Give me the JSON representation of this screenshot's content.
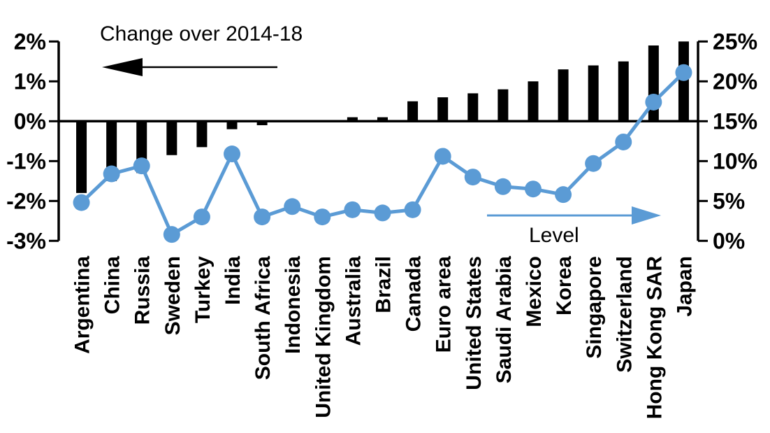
{
  "chart_data": {
    "type": "bar",
    "subtype": "combo-bar-line-dual-axis",
    "title": "",
    "grid": false,
    "background": "#FFFFFF",
    "categories": [
      "Argentina",
      "China",
      "Russia",
      "Sweden",
      "Turkey",
      "India",
      "South Africa",
      "Indonesia",
      "United Kingdom",
      "Australia",
      "Brazil",
      "Canada",
      "Euro area",
      "United States",
      "Saudi Arabia",
      "Mexico",
      "Korea",
      "Singapore",
      "Switzerland",
      "Hong Kong SAR",
      "Japan"
    ],
    "series": [
      {
        "name": "Change over 2014-18",
        "type": "bar",
        "axis": "left",
        "color": "#000000",
        "values": [
          -1.8,
          -1.5,
          -1.3,
          -0.85,
          -0.65,
          -0.2,
          -0.1,
          0,
          0,
          0.1,
          0.1,
          0.5,
          0.6,
          0.7,
          0.8,
          1.0,
          1.3,
          1.4,
          1.5,
          1.9,
          2.0
        ]
      },
      {
        "name": "Level",
        "type": "line",
        "axis": "right",
        "color": "#5B9BD5",
        "values": [
          4.8,
          8.4,
          9.4,
          0.8,
          3.0,
          10.9,
          3.0,
          4.3,
          3.0,
          3.9,
          3.5,
          3.9,
          10.6,
          8.0,
          6.8,
          6.5,
          5.8,
          9.7,
          12.4,
          17.4,
          21.1
        ]
      }
    ],
    "left_axis": {
      "unit": "%",
      "min": -3,
      "max": 2,
      "ticks": [
        "2%",
        "1%",
        "0%",
        "-1%",
        "-2%",
        "-3%"
      ],
      "tick_values": [
        2,
        1,
        0,
        -1,
        -2,
        -3
      ]
    },
    "right_axis": {
      "unit": "%",
      "min": 0,
      "max": 25,
      "ticks": [
        "25%",
        "20%",
        "15%",
        "10%",
        "5%",
        "0%"
      ],
      "tick_values": [
        25,
        20,
        15,
        10,
        5,
        0
      ]
    },
    "annotations": [
      {
        "text": "Change over 2014-18",
        "arrow_direction": "left",
        "color": "#000000"
      },
      {
        "text": "Level",
        "arrow_direction": "right",
        "color": "#5B9BD5"
      }
    ]
  }
}
